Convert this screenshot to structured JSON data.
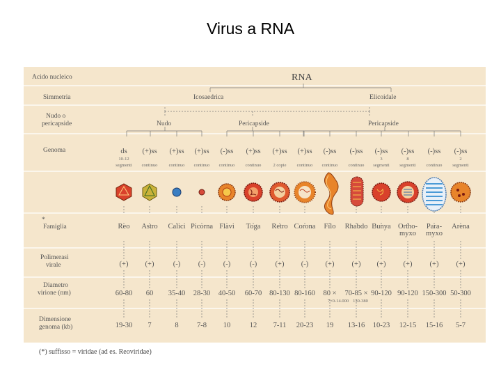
{
  "title": "Virus a RNA",
  "rows": {
    "acido_nucleico": "Acido nucleico",
    "rna": "RNA",
    "simmetria": "Simmetria",
    "icosaedrica": "Icosaedrica",
    "elicoidale": "Elicoidale",
    "nudo_line1": "Nudo o",
    "nudo_line2": "pericapside",
    "nudo": "Nudo",
    "pericapside": "Pericapside",
    "genoma": "Genoma",
    "famiglia_star": "*",
    "famiglia": "Famiglia",
    "polimerasi_line1": "Polimerasi",
    "polimerasi_line2": "virale",
    "diametro_line1": "Diametro",
    "diametro_line2": "virione (nm)",
    "dimensione_line1": "Dimensione",
    "dimensione_line2": "genoma (kb)"
  },
  "columns": [
    {
      "genome": "ds",
      "genome_note": "10-12",
      "genome_sub": "segmenti",
      "family": "Reo",
      "family2": "",
      "polymerase": "(+)",
      "diameter": "60-80",
      "genome_size": "19-30",
      "color": "#d9412b"
    },
    {
      "genome": "(+)ss",
      "genome_note": "",
      "genome_sub": "continuo",
      "family": "Astro",
      "family2": "",
      "polymerase": "(+)",
      "diameter": "60",
      "genome_size": "7",
      "color": "#c9b23a"
    },
    {
      "genome": "(+)ss",
      "genome_note": "",
      "genome_sub": "continuo",
      "family": "Calici",
      "family2": "",
      "polymerase": "(-)",
      "diameter": "35-40",
      "genome_size": "8",
      "color": "#3a7ec2"
    },
    {
      "genome": "(+)ss",
      "genome_note": "",
      "genome_sub": "continuo",
      "family": "Picorna",
      "family2": "",
      "polymerase": "(-)",
      "diameter": "28-30",
      "genome_size": "7-8",
      "color": "#d64a3a"
    },
    {
      "genome": "(-)ss",
      "genome_note": "",
      "genome_sub": "continuo",
      "family": "Flavi",
      "family2": "",
      "polymerase": "(-)",
      "diameter": "40-50",
      "genome_size": "10",
      "color": "#e8842a"
    },
    {
      "genome": "(+)ss",
      "genome_note": "",
      "genome_sub": "continuo",
      "family": "Toga",
      "family2": "",
      "polymerase": "(-)",
      "diameter": "60-70",
      "genome_size": "12",
      "color": "#d9412b"
    },
    {
      "genome": "(+)ss",
      "genome_note": "",
      "genome_sub": "2 copie",
      "family": "Retro",
      "family2": "",
      "polymerase": "(+)",
      "diameter": "80-130",
      "genome_size": "7-11",
      "color": "#e05a2e"
    },
    {
      "genome": "(+)ss",
      "genome_note": "",
      "genome_sub": "continuo",
      "family": "Corona",
      "family2": "",
      "polymerase": "(-)",
      "diameter": "80-160",
      "genome_size": "20-23",
      "color": "#e8842a"
    },
    {
      "genome": "(-)ss",
      "genome_note": "",
      "genome_sub": "continuo",
      "family": "Filo",
      "family2": "",
      "polymerase": "(+)",
      "diameter": "80 ×",
      "genome_size": "19",
      "color": "#e8842a"
    },
    {
      "genome": "(-)ss",
      "genome_note": "",
      "genome_sub": "continuo",
      "family": "Rhabdo",
      "family2": "",
      "polymerase": "(+)",
      "diameter": "70-85 ×",
      "genome_size": "13-16",
      "color": "#d64a3a"
    },
    {
      "genome": "(-)ss",
      "genome_note": "3",
      "genome_sub": "segmenti",
      "family": "Bunya",
      "family2": "",
      "polymerase": "(+)",
      "diameter": "90-120",
      "genome_size": "10-23",
      "color": "#d9412b"
    },
    {
      "genome": "(-)ss",
      "genome_note": "8",
      "genome_sub": "segmenti",
      "family": "Ortho-",
      "family2": "myxo",
      "polymerase": "(+)",
      "diameter": "90-120",
      "genome_size": "12-15",
      "color": "#d9412b"
    },
    {
      "genome": "(-)ss",
      "genome_note": "",
      "genome_sub": "continuo",
      "family": "Para-",
      "family2": "myxo",
      "polymerase": "(+)",
      "diameter": "150-300",
      "genome_size": "15-16",
      "color": "#4a9ad6"
    },
    {
      "genome": "(-)ss",
      "genome_note": "2",
      "genome_sub": "segmenti",
      "family": "Arena",
      "family2": "",
      "polymerase": "(+)",
      "diameter": "50-300",
      "genome_size": "5-7",
      "color": "#e8842a"
    }
  ],
  "diameter_extra": {
    "filo": "7×0-14.000",
    "rhabdo": "130-380"
  },
  "footnote": "(*) suffisso = viridae (ad es. Reoviridae)"
}
